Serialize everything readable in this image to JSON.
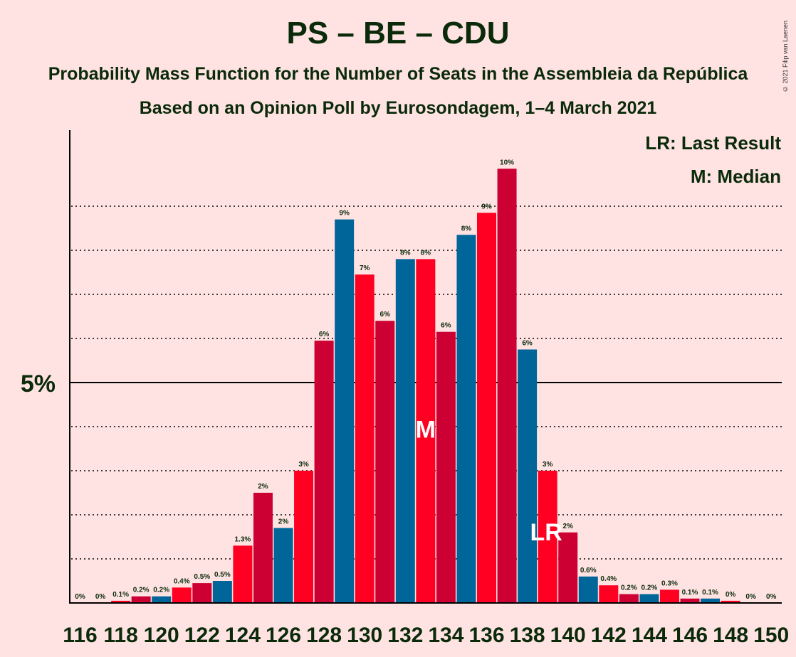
{
  "title": "PS – BE – CDU",
  "subtitle": "Probability Mass Function for the Number of Seats in the Assembleia da República",
  "subtitle2": "Based on an Opinion Poll by Eurosondagem, 1–4 March 2021",
  "copyright": "© 2021 Filip van Laenen",
  "legend": {
    "last_result": "LR: Last Result",
    "median": "M: Median"
  },
  "markers": {
    "median_label": "M",
    "last_result_label": "LR"
  },
  "colors": {
    "red": "#FF0022",
    "crimson": "#CC0033",
    "blue": "#006699",
    "background": "#FFE3E3"
  },
  "chart_data": {
    "type": "bar",
    "x": [
      116,
      117,
      118,
      119,
      120,
      121,
      122,
      123,
      124,
      125,
      126,
      127,
      128,
      129,
      130,
      131,
      132,
      133,
      134,
      135,
      136,
      137,
      138,
      139,
      140,
      141,
      142,
      143,
      144,
      145,
      146,
      147,
      148,
      149,
      150
    ],
    "values": [
      0,
      0,
      0.05,
      0.15,
      0.15,
      0.35,
      0.45,
      0.5,
      1.3,
      2.5,
      1.7,
      3.0,
      5.95,
      8.7,
      7.45,
      6.4,
      7.8,
      7.8,
      6.15,
      8.35,
      8.85,
      9.85,
      5.75,
      3.0,
      1.6,
      0.6,
      0.4,
      0.2,
      0.2,
      0.3,
      0.1,
      0.1,
      0.05,
      0,
      0
    ],
    "labels": [
      "0%",
      "0%",
      "0.1%",
      "0.2%",
      "0.2%",
      "0.4%",
      "0.5%",
      "0.5%",
      "1.3%",
      "2%",
      "2%",
      "3%",
      "6%",
      "9%",
      "7%",
      "6%",
      "8%",
      "8%",
      "6%",
      "8%",
      "9%",
      "10%",
      "6%",
      "3%",
      "2%",
      "0.6%",
      "0.4%",
      "0.2%",
      "0.2%",
      "0.3%",
      "0.1%",
      "0.1%",
      "0%",
      "0%",
      "0%"
    ],
    "color_cycle": [
      "crimson",
      "blue",
      "red"
    ],
    "xtick_values": [
      116,
      118,
      120,
      122,
      124,
      126,
      128,
      130,
      132,
      134,
      136,
      138,
      140,
      142,
      144,
      146,
      148,
      150
    ],
    "xtick_labels": [
      "116",
      "118",
      "120",
      "122",
      "124",
      "126",
      "128",
      "130",
      "132",
      "134",
      "136",
      "138",
      "140",
      "142",
      "144",
      "146",
      "148",
      "150"
    ],
    "ytick_value": 5,
    "ytick_label": "5%",
    "ylim": [
      0,
      10.7
    ],
    "gridlines": [
      1,
      2,
      3,
      4,
      6,
      7,
      8,
      9
    ],
    "median": 133,
    "last_result": 139
  }
}
